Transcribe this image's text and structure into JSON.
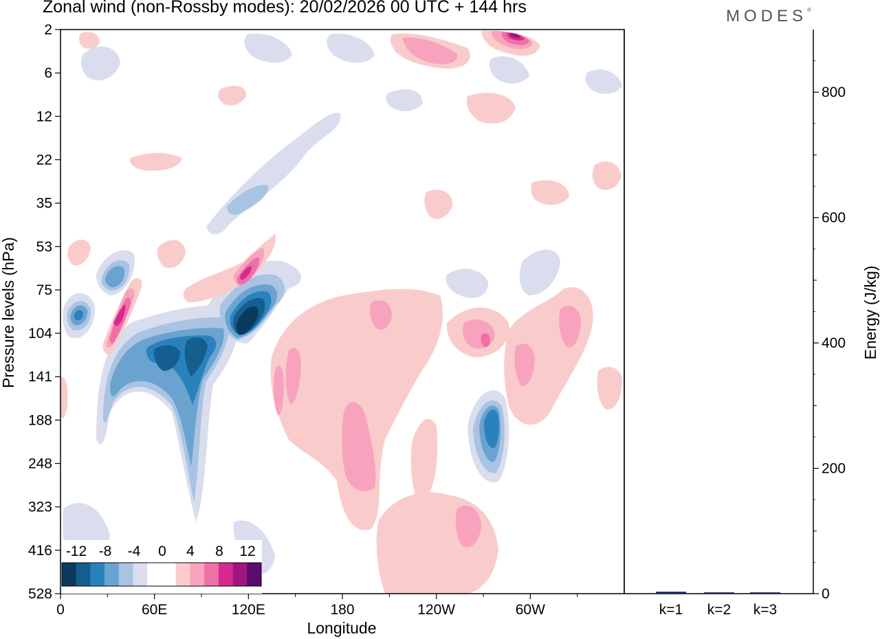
{
  "header": {
    "title": "Zonal wind (non-Rossby modes):  20/02/2026  00 UTC  + 144 hrs",
    "brand": "MODES"
  },
  "chart_data": [
    {
      "type": "heatmap",
      "name": "zonal-wind-contours",
      "xlabel": "Longitude",
      "ylabel": "Pressure levels (hPa)",
      "x_ticks": [
        "0",
        "60E",
        "120E",
        "180",
        "120W",
        "60W"
      ],
      "y_ticks": [
        "2",
        "6",
        "12",
        "22",
        "35",
        "53",
        "75",
        "104",
        "141",
        "188",
        "248",
        "323",
        "416",
        "528"
      ],
      "colorbar": {
        "labels": [
          "-12",
          "-8",
          "-4",
          "0",
          "4",
          "8",
          "12"
        ],
        "colors": [
          "#0b3a5e",
          "#145f8f",
          "#2a82bd",
          "#6aa3cf",
          "#a9c3e2",
          "#d9dded",
          "#ffffff",
          "#ffffff",
          "#f9cccb",
          "#f8a3bd",
          "#ef6fa7",
          "#d62b8e",
          "#a11580",
          "#5a0d6e"
        ]
      },
      "features": [
        {
          "label": "negative core near 120E",
          "lon": 118,
          "level": "104",
          "value": -14
        },
        {
          "label": "negative max near 90E",
          "lon": 88,
          "level": "120",
          "value": -10
        },
        {
          "label": "negative max near 65E",
          "lon": 65,
          "level": "120",
          "value": -9
        },
        {
          "label": "negative max near 10E",
          "lon": 10,
          "level": "90",
          "value": -8
        },
        {
          "label": "negative max near 30E",
          "lon": 30,
          "level": "65",
          "value": -6
        },
        {
          "label": "negative max near 80W",
          "lon": 280,
          "level": "188",
          "value": -8
        },
        {
          "label": "positive max near 35E",
          "lon": 35,
          "level": "90",
          "value": 9
        },
        {
          "label": "positive max near 110E",
          "lon": 110,
          "level": "70",
          "value": 8
        },
        {
          "label": "positive max near 65W",
          "lon": 295,
          "level": "2",
          "value": 10
        },
        {
          "label": "positive max near 180",
          "lon": 180,
          "level": "248",
          "value": 6
        },
        {
          "label": "positive max near 120W",
          "lon": 245,
          "level": "350",
          "value": 6
        },
        {
          "label": "positive max near 95W",
          "lon": 265,
          "level": "110",
          "value": 7
        }
      ]
    },
    {
      "type": "bar",
      "name": "energy-by-wavenumber",
      "ylabel": "Energy (J/kg)",
      "categories": [
        "k=1",
        "k=2",
        "k=3"
      ],
      "values": [
        2,
        1,
        1
      ],
      "ylim": [
        0,
        900
      ],
      "y_ticks": [
        "0",
        "200",
        "400",
        "600",
        "800"
      ]
    }
  ]
}
